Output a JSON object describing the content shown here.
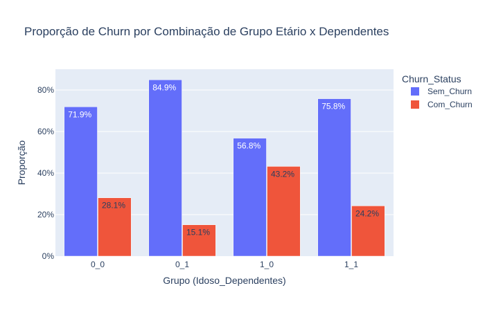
{
  "chart_data": {
    "type": "bar",
    "title": "Proporção de Churn por Combinação de Grupo Etário x Dependentes",
    "xlabel": "Grupo (Idoso_Dependentes)",
    "ylabel": "Proporção",
    "categories": [
      "0_0",
      "0_1",
      "1_0",
      "1_1"
    ],
    "ylim": [
      0,
      0.9
    ],
    "yticks": [
      0,
      0.2,
      0.4,
      0.6,
      0.8
    ],
    "ytick_labels": [
      "0%",
      "20%",
      "40%",
      "60%",
      "80%"
    ],
    "grid": true,
    "legend": {
      "title": "Churn_Status",
      "placement": "right"
    },
    "series": [
      {
        "name": "Sem_Churn",
        "color": "#636efa",
        "values": [
          0.719,
          0.849,
          0.568,
          0.758
        ],
        "labels": [
          "71.9%",
          "84.9%",
          "56.8%",
          "75.8%"
        ]
      },
      {
        "name": "Com_Churn",
        "color": "#ef553b",
        "values": [
          0.281,
          0.151,
          0.432,
          0.242
        ],
        "labels": [
          "28.1%",
          "15.1%",
          "43.2%",
          "24.2%"
        ]
      }
    ],
    "plot_background": "#e5ecf6"
  }
}
